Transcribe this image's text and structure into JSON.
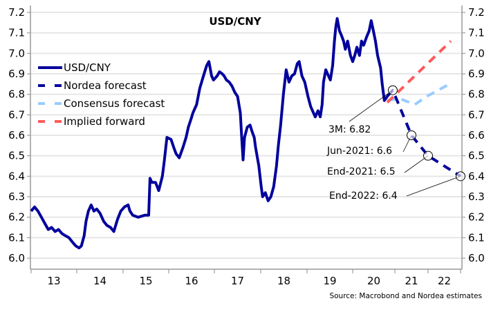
{
  "chart_data": {
    "type": "line",
    "title": "USD/CNY",
    "xlabel": "",
    "ylabel": "",
    "ylim": [
      6.0,
      7.2
    ],
    "yticks": [
      "6.0",
      "6.1",
      "6.2",
      "6.3",
      "6.4",
      "6.5",
      "6.6",
      "6.7",
      "6.8",
      "6.9",
      "7.0",
      "7.1",
      "7.2"
    ],
    "xticks": [
      "13",
      "14",
      "15",
      "16",
      "17",
      "18",
      "19",
      "20",
      "21",
      "22"
    ],
    "grid": true,
    "legend_position": "left",
    "source": "Source: Macrobond and Nordea estimates",
    "colors": {
      "usdcny": "#00009c",
      "nordea": "#00009c",
      "consensus": "#99ccff",
      "implied": "#ff5a5a"
    },
    "series": [
      {
        "name": "USD/CNY",
        "style": "solid",
        "x": [
          2013.0,
          2013.075,
          2013.15,
          2013.226,
          2013.3,
          2013.376,
          2013.45,
          2013.526,
          2013.6,
          2013.677,
          2013.75,
          2013.827,
          2013.9,
          2013.977,
          2014.05,
          2014.1,
          2014.16,
          2014.2,
          2014.25,
          2014.31,
          2014.37,
          2014.43,
          2014.5,
          2014.58,
          2014.65,
          2014.73,
          2014.8,
          2014.88,
          2014.95,
          2015.03,
          2015.11,
          2015.15,
          2015.21,
          2015.33,
          2015.48,
          2015.56,
          2015.59,
          2015.63,
          2015.71,
          2015.78,
          2015.86,
          2015.9,
          2015.93,
          2015.96,
          2016.05,
          2016.11,
          2016.16,
          2016.23,
          2016.31,
          2016.38,
          2016.43,
          2016.49,
          2016.53,
          2016.61,
          2016.68,
          2016.76,
          2016.83,
          2016.88,
          2016.94,
          2016.98,
          2017.06,
          2017.11,
          2017.17,
          2017.21,
          2017.26,
          2017.32,
          2017.38,
          2017.44,
          2017.5,
          2017.56,
          2017.59,
          2017.62,
          2017.65,
          2017.71,
          2017.77,
          2017.81,
          2017.86,
          2017.89,
          2017.96,
          2018.01,
          2018.04,
          2018.1,
          2018.16,
          2018.22,
          2018.28,
          2018.34,
          2018.38,
          2018.43,
          2018.49,
          2018.55,
          2018.61,
          2018.67,
          2018.73,
          2018.79,
          2018.83,
          2018.89,
          2018.95,
          2019.02,
          2019.08,
          2019.12,
          2019.18,
          2019.24,
          2019.29,
          2019.33,
          2019.36,
          2019.41,
          2019.47,
          2019.51,
          2019.56,
          2019.6,
          2019.63,
          2019.66,
          2019.71,
          2019.75,
          2019.8,
          2019.84,
          2019.89,
          2019.95,
          2020.0,
          2020.05,
          2020.1,
          2020.16,
          2020.21,
          2020.26,
          2020.33,
          2020.39,
          2020.44,
          2020.49,
          2020.54,
          2020.59,
          2020.66,
          2020.7,
          2020.75,
          2020.82
        ],
        "y": [
          6.23,
          6.25,
          6.23,
          6.2,
          6.17,
          6.14,
          6.15,
          6.13,
          6.14,
          6.12,
          6.11,
          6.1,
          6.08,
          6.06,
          6.05,
          6.06,
          6.11,
          6.18,
          6.23,
          6.26,
          6.23,
          6.24,
          6.22,
          6.18,
          6.16,
          6.15,
          6.13,
          6.19,
          6.23,
          6.25,
          6.26,
          6.23,
          6.21,
          6.2,
          6.21,
          6.21,
          6.39,
          6.37,
          6.37,
          6.33,
          6.4,
          6.47,
          6.53,
          6.59,
          6.58,
          6.54,
          6.51,
          6.49,
          6.54,
          6.59,
          6.64,
          6.68,
          6.71,
          6.75,
          6.83,
          6.89,
          6.94,
          6.96,
          6.89,
          6.87,
          6.89,
          6.91,
          6.9,
          6.89,
          6.87,
          6.86,
          6.84,
          6.81,
          6.79,
          6.71,
          6.59,
          6.48,
          6.59,
          6.64,
          6.65,
          6.62,
          6.59,
          6.54,
          6.45,
          6.35,
          6.3,
          6.32,
          6.28,
          6.3,
          6.35,
          6.45,
          6.55,
          6.65,
          6.8,
          6.92,
          6.86,
          6.89,
          6.9,
          6.95,
          6.96,
          6.89,
          6.86,
          6.79,
          6.74,
          6.72,
          6.69,
          6.72,
          6.69,
          6.75,
          6.86,
          6.92,
          6.89,
          6.87,
          6.94,
          7.06,
          7.13,
          7.17,
          7.11,
          7.09,
          7.06,
          7.02,
          7.06,
          6.99,
          6.96,
          6.99,
          7.03,
          6.99,
          7.06,
          7.04,
          7.08,
          7.11,
          7.16,
          7.11,
          7.06,
          6.99,
          6.93,
          6.85,
          6.77,
          6.79
        ]
      },
      {
        "name": "Nordea forecast",
        "style": "dashed",
        "x": [
          2020.82,
          2020.95,
          2021.5,
          2022.0,
          2023.0
        ],
        "y": [
          6.79,
          6.82,
          6.6,
          6.5,
          6.4
        ]
      },
      {
        "name": "Consensus forecast",
        "style": "dashed",
        "x": [
          2020.82,
          2021.13,
          2021.6,
          2021.96,
          2022.66
        ],
        "y": [
          6.77,
          6.78,
          6.75,
          6.79,
          6.85
        ]
      },
      {
        "name": "Implied forward",
        "style": "dashed",
        "x": [
          2020.82,
          2022.7
        ],
        "y": [
          6.76,
          7.06
        ]
      }
    ],
    "annotations": [
      {
        "label": "3M: 6.82",
        "x": 2020.95,
        "y": 6.82
      },
      {
        "label": "Jun-2021: 6.6",
        "x": 2021.5,
        "y": 6.6
      },
      {
        "label": "End-2021: 6.5",
        "x": 2022.0,
        "y": 6.5
      },
      {
        "label": "End-2022: 6.4",
        "x": 2023.0,
        "y": 6.4
      }
    ]
  }
}
